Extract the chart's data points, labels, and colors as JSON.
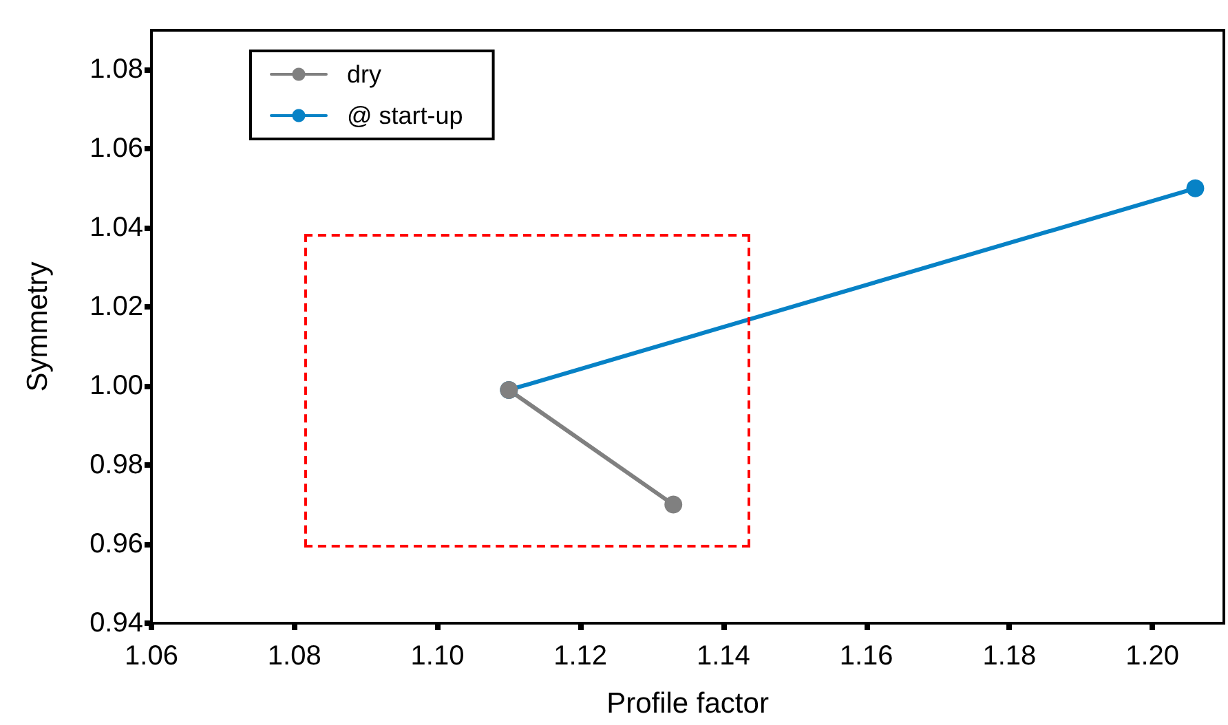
{
  "chart_data": {
    "type": "line",
    "xlabel": "Profile factor",
    "ylabel": "Symmetry",
    "series": [
      {
        "name": "dry",
        "color": "#808080",
        "x": [
          1.11,
          1.133
        ],
        "values": [
          0.999,
          0.97
        ]
      },
      {
        "name": "@ start-up",
        "color": "#0782c6",
        "x": [
          1.11,
          1.206
        ],
        "values": [
          0.999,
          1.05
        ]
      }
    ],
    "xlim": [
      1.06,
      1.21
    ],
    "ylim": [
      0.94,
      1.09
    ],
    "xticks": [
      1.06,
      1.08,
      {
        "value": 1.1,
        "label": "1.10"
      },
      1.12,
      1.14,
      1.16,
      1.18,
      {
        "value": 1.2,
        "label": "1.20"
      }
    ],
    "yticks": [
      0.94,
      0.96,
      0.98,
      {
        "value": 1.0,
        "label": "1.00"
      },
      1.02,
      1.04,
      1.06,
      1.08
    ],
    "marker": "circle",
    "line_style": "solid",
    "grid": false,
    "legend": "top left"
  }
}
